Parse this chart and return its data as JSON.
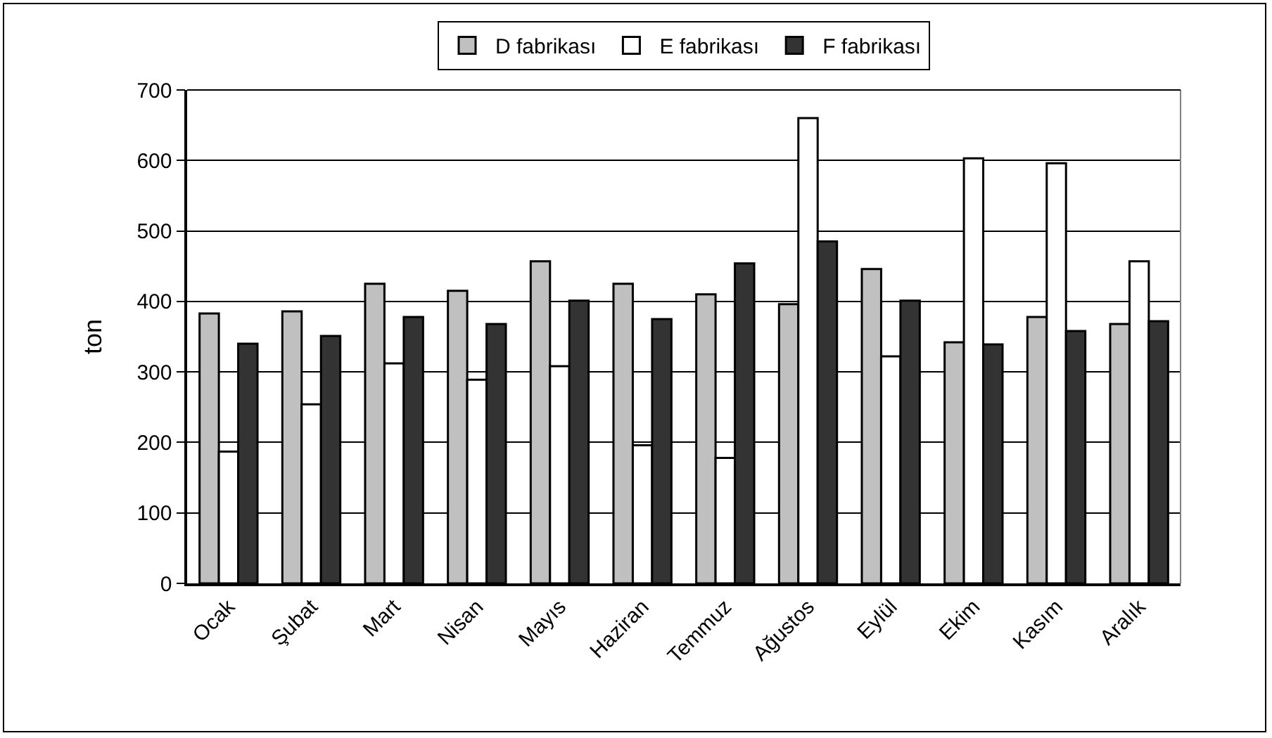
{
  "chart_data": {
    "type": "bar",
    "ylabel": "ton",
    "categories": [
      "Ocak",
      "Şubat",
      "Mart",
      "Nisan",
      "Mayıs",
      "Haziran",
      "Temmuz",
      "Ağustos",
      "Eylül",
      "Ekim",
      "Kasım",
      "Aralık"
    ],
    "series": [
      {
        "name": "D fabrikası",
        "color": "#c0c0c0",
        "values": [
          383,
          386,
          425,
          415,
          457,
          425,
          410,
          396,
          446,
          342,
          378,
          368
        ]
      },
      {
        "name": "E fabrikası",
        "color": "#ffffff",
        "values": [
          187,
          254,
          312,
          289,
          308,
          196,
          178,
          660,
          322,
          603,
          596,
          457
        ]
      },
      {
        "name": "F fabrikası",
        "color": "#333333",
        "values": [
          340,
          351,
          378,
          368,
          401,
          375,
          454,
          485,
          401,
          339,
          358,
          372
        ]
      }
    ],
    "ylim": [
      0,
      700
    ],
    "yticks": [
      0,
      100,
      200,
      300,
      400,
      500,
      600,
      700
    ],
    "grid": "y",
    "legend": "top"
  }
}
